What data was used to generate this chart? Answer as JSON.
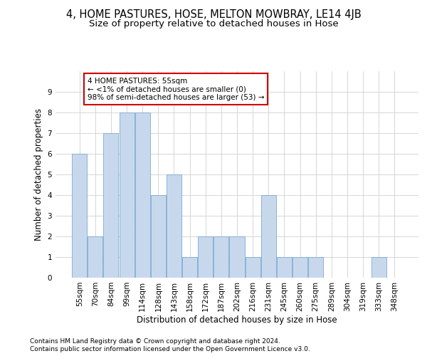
{
  "title": "4, HOME PASTURES, HOSE, MELTON MOWBRAY, LE14 4JB",
  "subtitle": "Size of property relative to detached houses in Hose",
  "xlabel": "Distribution of detached houses by size in Hose",
  "ylabel": "Number of detached properties",
  "categories": [
    "55sqm",
    "70sqm",
    "84sqm",
    "99sqm",
    "114sqm",
    "128sqm",
    "143sqm",
    "158sqm",
    "172sqm",
    "187sqm",
    "202sqm",
    "216sqm",
    "231sqm",
    "245sqm",
    "260sqm",
    "275sqm",
    "289sqm",
    "304sqm",
    "319sqm",
    "333sqm",
    "348sqm"
  ],
  "values": [
    6,
    2,
    7,
    8,
    8,
    4,
    5,
    1,
    2,
    2,
    2,
    1,
    4,
    1,
    1,
    1,
    0,
    0,
    0,
    1,
    0
  ],
  "bar_color": "#c8d8ec",
  "bar_edge_color": "#7aaad0",
  "annotation_text": "4 HOME PASTURES: 55sqm\n← <1% of detached houses are smaller (0)\n98% of semi-detached houses are larger (53) →",
  "annotation_box_color": "white",
  "annotation_box_edge_color": "#cc0000",
  "ylim": [
    0,
    10
  ],
  "yticks": [
    0,
    1,
    2,
    3,
    4,
    5,
    6,
    7,
    8,
    9,
    10
  ],
  "grid_color": "#d0d0d0",
  "background_color": "white",
  "footer_line1": "Contains HM Land Registry data © Crown copyright and database right 2024.",
  "footer_line2": "Contains public sector information licensed under the Open Government Licence v3.0.",
  "title_fontsize": 10.5,
  "subtitle_fontsize": 9.5,
  "xlabel_fontsize": 8.5,
  "ylabel_fontsize": 8.5,
  "tick_fontsize": 7.5,
  "annotation_fontsize": 7.5,
  "footer_fontsize": 6.5
}
